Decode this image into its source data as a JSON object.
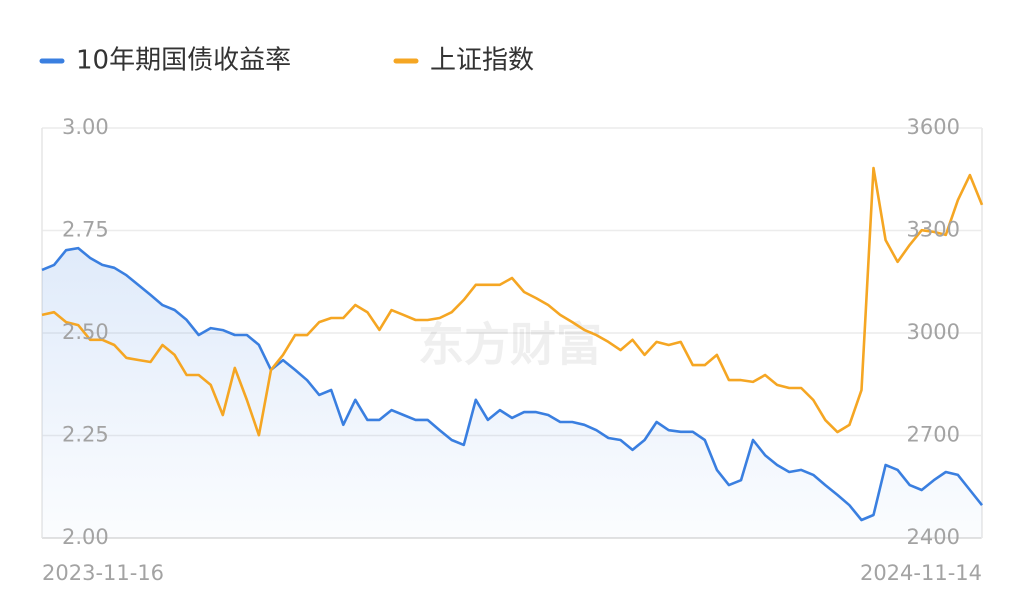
{
  "chart_data": {
    "type": "line",
    "watermark": "东方财富",
    "categories": [
      "2023-11-16",
      null,
      null,
      null,
      null,
      null,
      null,
      null,
      null,
      null,
      null,
      null,
      null,
      null,
      null,
      null,
      null,
      null,
      null,
      null,
      null,
      null,
      null,
      null,
      null,
      null,
      null,
      null,
      null,
      null,
      null,
      null,
      null,
      null,
      null,
      null,
      null,
      null,
      null,
      null,
      null,
      null,
      null,
      null,
      null,
      null,
      null,
      null,
      null,
      null,
      null,
      null,
      null,
      null,
      null,
      null,
      null,
      null,
      null,
      null,
      null,
      null,
      null,
      null,
      null,
      null,
      null,
      null,
      null,
      null,
      null,
      null,
      null,
      null,
      null,
      null,
      null,
      null,
      "2024-11-14"
    ],
    "series": [
      {
        "name": "10年期国债收益率",
        "color": "#3a7fe0",
        "axis": "y",
        "values": [
          2.654,
          2.666,
          2.702,
          2.707,
          2.683,
          2.666,
          2.659,
          2.641,
          2.617,
          2.593,
          2.568,
          2.556,
          2.532,
          2.495,
          2.512,
          2.507,
          2.495,
          2.495,
          2.471,
          2.41,
          2.434,
          2.41,
          2.385,
          2.349,
          2.361,
          2.276,
          2.337,
          2.288,
          2.288,
          2.312,
          2.3,
          2.288,
          2.288,
          2.263,
          2.239,
          2.227,
          2.337,
          2.288,
          2.312,
          2.293,
          2.307,
          2.307,
          2.3,
          2.283,
          2.283,
          2.276,
          2.263,
          2.244,
          2.239,
          2.215,
          2.239,
          2.283,
          2.263,
          2.259,
          2.259,
          2.239,
          2.166,
          2.129,
          2.141,
          2.239,
          2.202,
          2.178,
          2.161,
          2.166,
          2.154,
          2.129,
          2.105,
          2.08,
          2.044,
          2.056,
          2.178,
          2.166,
          2.129,
          2.117,
          2.141,
          2.161,
          2.154,
          2.117,
          2.08
        ]
      },
      {
        "name": "上证指数",
        "color": "#f5a623",
        "axis": "y2",
        "values": [
          3053,
          3061,
          3032,
          3023,
          2980,
          2980,
          2965,
          2927,
          2921,
          2915,
          2965,
          2936,
          2877,
          2877,
          2848,
          2760,
          2898,
          2804,
          2701,
          2892,
          2936,
          2994,
          2994,
          3032,
          3044,
          3044,
          3082,
          3061,
          3009,
          3067,
          3053,
          3038,
          3038,
          3044,
          3061,
          3097,
          3141,
          3141,
          3141,
          3161,
          3120,
          3102,
          3082,
          3053,
          3032,
          3009,
          2994,
          2974,
          2950,
          2980,
          2936,
          2974,
          2965,
          2974,
          2906,
          2906,
          2936,
          2862,
          2862,
          2857,
          2877,
          2848,
          2839,
          2839,
          2804,
          2745,
          2710,
          2731,
          2833,
          3483,
          3272,
          3208,
          3258,
          3301,
          3296,
          3287,
          3389,
          3462,
          3375
        ]
      }
    ],
    "ylim": [
      2.0,
      3.0
    ],
    "yticks": [
      {
        "value": 2.0,
        "label": "2.00"
      },
      {
        "value": 2.25,
        "label": "2.25"
      },
      {
        "value": 2.5,
        "label": "2.50"
      },
      {
        "value": 2.75,
        "label": "2.75"
      },
      {
        "value": 3.0,
        "label": "3.00"
      }
    ],
    "y2lim": [
      2400,
      3600
    ],
    "y2ticks": [
      2400,
      2700,
      3000,
      3300,
      3600
    ],
    "grid": true
  }
}
